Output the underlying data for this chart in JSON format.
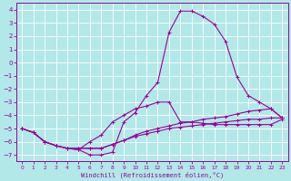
{
  "title": "",
  "xlabel": "Windchill (Refroidissement éolien,°C)",
  "ylabel": "",
  "background_color": "#b2e8e8",
  "grid_color": "#ffffff",
  "line_color": "#990099",
  "xlim": [
    -0.5,
    23.5
  ],
  "ylim": [
    -7.5,
    4.5
  ],
  "xticks": [
    0,
    1,
    2,
    3,
    4,
    5,
    6,
    7,
    8,
    9,
    10,
    11,
    12,
    13,
    14,
    15,
    16,
    17,
    18,
    19,
    20,
    21,
    22,
    23
  ],
  "yticks": [
    -7,
    -6,
    -5,
    -4,
    -3,
    -2,
    -1,
    0,
    1,
    2,
    3,
    4
  ],
  "lines": [
    {
      "x": [
        0,
        1,
        2,
        3,
        4,
        5,
        6,
        7,
        8,
        9,
        10,
        11,
        12,
        13,
        14,
        15,
        16,
        17,
        18,
        19,
        20,
        21,
        22,
        23
      ],
      "y": [
        -5.0,
        -5.3,
        -6.0,
        -6.3,
        -6.5,
        -6.6,
        -7.0,
        -7.0,
        -6.8,
        -4.5,
        -3.8,
        -2.5,
        -1.5,
        2.3,
        3.9,
        3.9,
        3.5,
        2.9,
        1.6,
        -1.1,
        -2.5,
        -3.0,
        -3.5,
        -4.2
      ]
    },
    {
      "x": [
        0,
        1,
        2,
        3,
        4,
        5,
        6,
        7,
        8,
        9,
        10,
        11,
        12,
        13,
        14,
        15,
        16,
        17,
        18,
        19,
        20,
        21,
        22,
        23
      ],
      "y": [
        -5.0,
        -5.3,
        -6.0,
        -6.3,
        -6.5,
        -6.6,
        -6.0,
        -5.5,
        -4.5,
        -4.0,
        -3.5,
        -3.3,
        -3.0,
        -3.0,
        -4.5,
        -4.5,
        -4.6,
        -4.7,
        -4.7,
        -4.7,
        -4.7,
        -4.7,
        -4.7,
        -4.3
      ]
    },
    {
      "x": [
        0,
        1,
        2,
        3,
        4,
        5,
        6,
        7,
        8,
        9,
        10,
        11,
        12,
        13,
        14,
        15,
        16,
        17,
        18,
        19,
        20,
        21,
        22,
        23
      ],
      "y": [
        -5.0,
        -5.3,
        -6.0,
        -6.3,
        -6.5,
        -6.5,
        -6.5,
        -6.5,
        -6.2,
        -5.9,
        -5.6,
        -5.4,
        -5.2,
        -5.0,
        -4.9,
        -4.8,
        -4.7,
        -4.6,
        -4.5,
        -4.4,
        -4.3,
        -4.3,
        -4.2,
        -4.2
      ]
    },
    {
      "x": [
        0,
        1,
        2,
        3,
        4,
        5,
        6,
        7,
        8,
        9,
        10,
        11,
        12,
        13,
        14,
        15,
        16,
        17,
        18,
        19,
        20,
        21,
        22,
        23
      ],
      "y": [
        -5.0,
        -5.3,
        -6.0,
        -6.3,
        -6.5,
        -6.5,
        -6.5,
        -6.5,
        -6.2,
        -5.9,
        -5.5,
        -5.2,
        -5.0,
        -4.8,
        -4.6,
        -4.5,
        -4.3,
        -4.2,
        -4.1,
        -3.9,
        -3.7,
        -3.6,
        -3.5,
        -4.2
      ]
    }
  ]
}
